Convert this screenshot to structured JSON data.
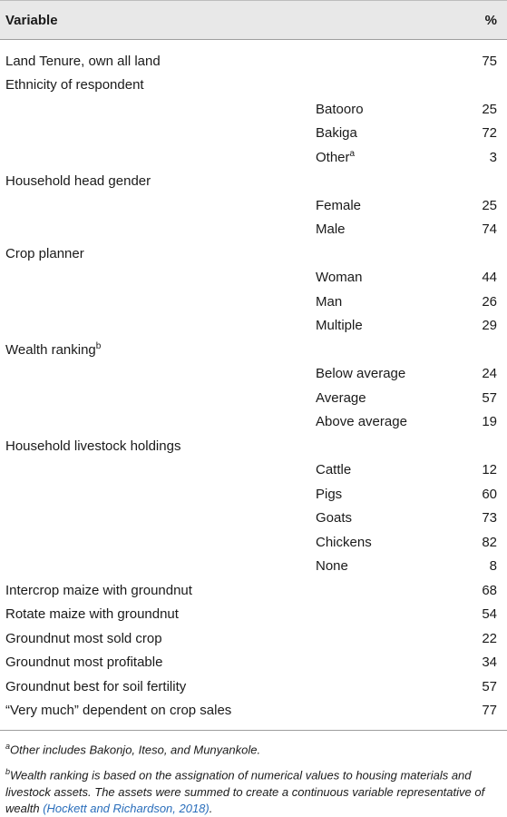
{
  "header": {
    "variable": "Variable",
    "percent": "%"
  },
  "rows": [
    {
      "main": "Land Tenure, own all land",
      "sub": "",
      "pct": "75"
    },
    {
      "main": "Ethnicity of respondent",
      "sub": "",
      "pct": ""
    },
    {
      "main": "",
      "sub": "Batooro",
      "pct": "25"
    },
    {
      "main": "",
      "sub": "Bakiga",
      "pct": "72"
    },
    {
      "main": "",
      "sub": "Other",
      "sup": "a",
      "pct": "3"
    },
    {
      "main": "Household head gender",
      "sub": "",
      "pct": ""
    },
    {
      "main": "",
      "sub": "Female",
      "pct": "25"
    },
    {
      "main": "",
      "sub": "Male",
      "pct": "74"
    },
    {
      "main": "Crop planner",
      "sub": "",
      "pct": ""
    },
    {
      "main": "",
      "sub": "Woman",
      "pct": "44"
    },
    {
      "main": "",
      "sub": "Man",
      "pct": "26"
    },
    {
      "main": "",
      "sub": "Multiple",
      "pct": "29"
    },
    {
      "main": "Wealth ranking",
      "mainsup": "b",
      "sub": "",
      "pct": ""
    },
    {
      "main": "",
      "sub": "Below average",
      "pct": "24"
    },
    {
      "main": "",
      "sub": "Average",
      "pct": "57"
    },
    {
      "main": "",
      "sub": "Above average",
      "pct": "19"
    },
    {
      "main": "Household livestock holdings",
      "sub": "",
      "pct": ""
    },
    {
      "main": "",
      "sub": "Cattle",
      "pct": "12"
    },
    {
      "main": "",
      "sub": "Pigs",
      "pct": "60"
    },
    {
      "main": "",
      "sub": "Goats",
      "pct": "73"
    },
    {
      "main": "",
      "sub": "Chickens",
      "pct": "82"
    },
    {
      "main": "",
      "sub": "None",
      "pct": "8"
    },
    {
      "main": "Intercrop maize with groundnut",
      "sub": "",
      "pct": "68"
    },
    {
      "main": "Rotate maize with groundnut",
      "sub": "",
      "pct": "54"
    },
    {
      "main": "Groundnut most sold crop",
      "sub": "",
      "pct": "22"
    },
    {
      "main": "Groundnut most profitable",
      "sub": "",
      "pct": "34"
    },
    {
      "main": "Groundnut best for soil fertility",
      "sub": "",
      "pct": "57"
    },
    {
      "main": "“Very much” dependent on crop sales",
      "sub": "",
      "pct": "77"
    }
  ],
  "footnotes": {
    "a_mark": "a",
    "a_text": "Other includes Bakonjo, Iteso, and Munyankole.",
    "b_mark": "b",
    "b_text": "Wealth ranking is based on the assignation of numerical values to housing materials and livestock assets. The assets were summed to create a continuous variable representative of wealth ",
    "b_cite": "(Hockett and Richardson, 2018)",
    "b_end": "."
  }
}
